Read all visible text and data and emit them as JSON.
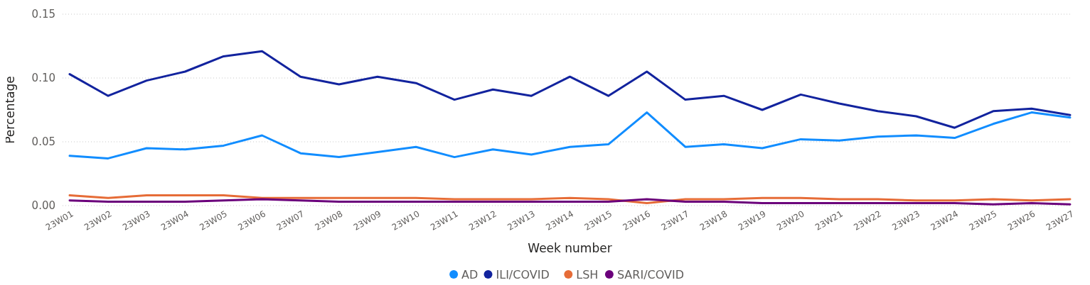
{
  "chart_data": {
    "type": "line",
    "xlabel": "Week number",
    "ylabel": "Percentage",
    "categories": [
      "23W01",
      "23W02",
      "23W03",
      "23W04",
      "23W05",
      "23W06",
      "23W07",
      "23W08",
      "23W09",
      "23W10",
      "23W11",
      "23W12",
      "23W13",
      "23W14",
      "23W15",
      "23W16",
      "23W17",
      "23W18",
      "23W19",
      "23W20",
      "23W21",
      "23W22",
      "23W23",
      "23W24",
      "23W25",
      "23W26",
      "23W27"
    ],
    "ylim": [
      0,
      0.15
    ],
    "yticks": [
      {
        "value": 0,
        "label": "0.00"
      },
      {
        "value": 0.05,
        "label": "0.05"
      },
      {
        "value": 0.1,
        "label": "0.10"
      },
      {
        "value": 0.15,
        "label": "0.15"
      }
    ],
    "grid": "y",
    "legend": "bottom",
    "line_style": "solid",
    "series": [
      {
        "name": "AD",
        "color": "#118dff",
        "values": [
          0.039,
          0.037,
          0.045,
          0.044,
          0.047,
          0.055,
          0.041,
          0.038,
          0.042,
          0.046,
          0.038,
          0.044,
          0.04,
          0.046,
          0.048,
          0.073,
          0.046,
          0.048,
          0.045,
          0.052,
          0.051,
          0.054,
          0.055,
          0.053,
          0.064,
          0.073,
          0.069
        ]
      },
      {
        "name": "ILI/COVID",
        "color": "#12239e",
        "values": [
          0.103,
          0.086,
          0.098,
          0.105,
          0.117,
          0.121,
          0.101,
          0.095,
          0.101,
          0.096,
          0.083,
          0.091,
          0.086,
          0.101,
          0.086,
          0.105,
          0.083,
          0.086,
          0.075,
          0.087,
          0.08,
          0.074,
          0.07,
          0.061,
          0.074,
          0.076,
          0.071
        ]
      },
      {
        "name": "LSH",
        "color": "#e66c37",
        "values": [
          0.008,
          0.006,
          0.008,
          0.008,
          0.008,
          0.006,
          0.006,
          0.006,
          0.006,
          0.006,
          0.005,
          0.005,
          0.005,
          0.006,
          0.005,
          0.002,
          0.005,
          0.005,
          0.006,
          0.006,
          0.005,
          0.005,
          0.004,
          0.004,
          0.005,
          0.004,
          0.005
        ]
      },
      {
        "name": "SARI/COVID",
        "color": "#6b007b",
        "values": [
          0.004,
          0.003,
          0.003,
          0.003,
          0.004,
          0.005,
          0.004,
          0.003,
          0.003,
          0.003,
          0.003,
          0.003,
          0.003,
          0.003,
          0.003,
          0.005,
          0.003,
          0.003,
          0.002,
          0.002,
          0.002,
          0.002,
          0.002,
          0.002,
          0.001,
          0.002,
          0.001
        ]
      }
    ]
  }
}
